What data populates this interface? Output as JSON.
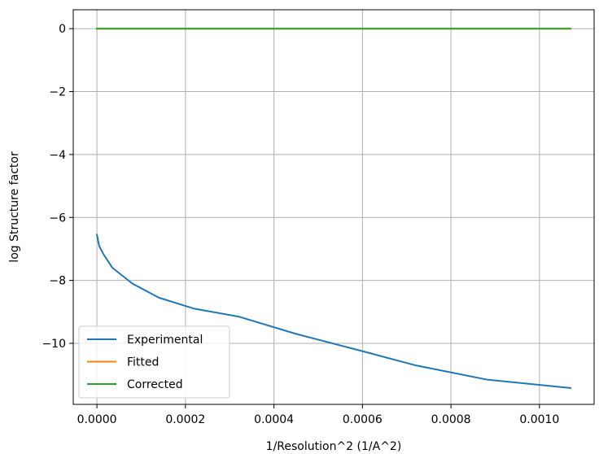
{
  "chart_data": {
    "type": "line",
    "xlabel": "1/Resolution^2 (1/A^2)",
    "ylabel": "log Structure factor",
    "xlim": [
      -5.35e-05,
      0.0011235
    ],
    "ylim": [
      -11.94,
      0.6
    ],
    "grid": true,
    "legend_position": "lower-left",
    "x_ticks": [
      {
        "value": 0.0,
        "label": "0.0000"
      },
      {
        "value": 0.0002,
        "label": "0.0002"
      },
      {
        "value": 0.0004,
        "label": "0.0004"
      },
      {
        "value": 0.0006,
        "label": "0.0006"
      },
      {
        "value": 0.0008,
        "label": "0.0008"
      },
      {
        "value": 0.001,
        "label": "0.0010"
      }
    ],
    "y_ticks": [
      {
        "value": 0,
        "label": "0"
      },
      {
        "value": -2,
        "label": "−2"
      },
      {
        "value": -4,
        "label": "−4"
      },
      {
        "value": -6,
        "label": "−6"
      },
      {
        "value": -8,
        "label": "−8"
      },
      {
        "value": -10,
        "label": "−10"
      }
    ],
    "series": [
      {
        "name": "Experimental",
        "color": "#1f77b4",
        "x": [
          0.0,
          5e-06,
          1.4e-05,
          3.5e-05,
          8e-05,
          0.00014,
          0.00022,
          0.00032,
          0.00045,
          0.0006,
          0.00072,
          0.00088,
          0.00107
        ],
        "y": [
          -6.55,
          -6.9,
          -7.15,
          -7.6,
          -8.1,
          -8.55,
          -8.9,
          -9.15,
          -9.7,
          -10.25,
          -10.7,
          -11.15,
          -11.42
        ]
      },
      {
        "name": "Fitted",
        "color": "#ff7f0e",
        "x": [
          0.0,
          0.00107
        ],
        "y": [
          0,
          0
        ]
      },
      {
        "name": "Corrected",
        "color": "#2ca02c",
        "x": [
          0.0,
          0.00107
        ],
        "y": [
          0,
          0
        ]
      }
    ]
  }
}
